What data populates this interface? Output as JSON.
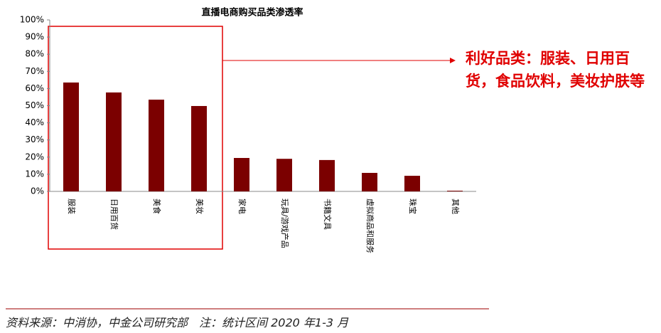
{
  "chart_data": {
    "type": "bar",
    "title": "直播电商购买品类渗透率",
    "categories": [
      "服装",
      "日用百货",
      "美食",
      "美妆",
      "家电",
      "玩具/游戏产品",
      "书籍文具",
      "虚拟商品和服务",
      "珠宝",
      "其他"
    ],
    "values": [
      63.5,
      57.7,
      53.5,
      49.8,
      19.5,
      19,
      18.3,
      10.8,
      9.1,
      0.4
    ],
    "color": "#7b0000",
    "ylim": [
      0,
      100
    ],
    "yticks": [
      {
        "value": 0,
        "label": "0%"
      },
      {
        "value": 10,
        "label": "10%"
      },
      {
        "value": 20,
        "label": "20%"
      },
      {
        "value": 30,
        "label": "30%"
      },
      {
        "value": 40,
        "label": "40%"
      },
      {
        "value": 50,
        "label": "50%"
      },
      {
        "value": 60,
        "label": "60%"
      },
      {
        "value": 70,
        "label": "70%"
      },
      {
        "value": 80,
        "label": "80%"
      },
      {
        "value": 90,
        "label": "90%"
      },
      {
        "value": 100,
        "label": "100%"
      }
    ],
    "grid": false,
    "annotation": "利好品类：服装、日用百货，食品饮料，美妆护肤等",
    "source": "资料来源：中消协，中金公司研究部　注：统计区间 2020 年1-3 月"
  }
}
